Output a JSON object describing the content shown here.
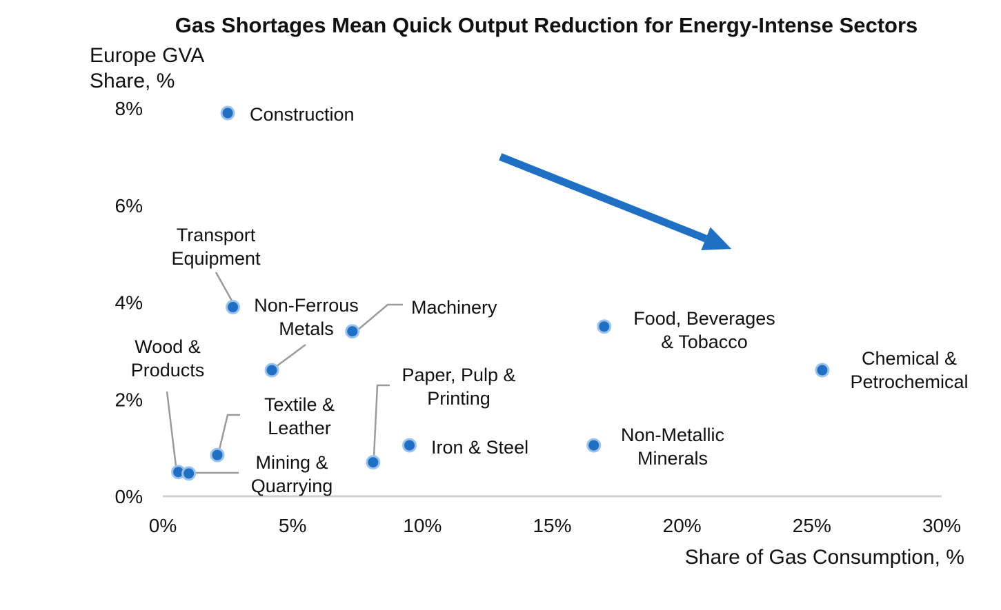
{
  "chart_data": {
    "type": "scatter",
    "title": "Gas Shortages Mean Quick Output Reduction for Energy-Intense Sectors",
    "xlabel": "Share of Gas Consumption, %",
    "ylabel_lines": [
      "Europe GVA",
      "Share, %"
    ],
    "xlim": [
      0,
      30
    ],
    "ylim": [
      0,
      8
    ],
    "xticks": [
      0,
      5,
      10,
      15,
      20,
      25,
      30
    ],
    "xtick_labels": [
      "0%",
      "5%",
      "10%",
      "15%",
      "20%",
      "25%",
      "30%"
    ],
    "yticks": [
      0,
      2,
      4,
      6,
      8
    ],
    "ytick_labels": [
      "0%",
      "2%",
      "4%",
      "6%",
      "8%"
    ],
    "grid": false,
    "marker_color": "#1f6fc5",
    "marker_edge_color": "#9cc3ea",
    "leader_color": "#9a9a9a",
    "arrow_color": "#1f6fc5",
    "trend_arrow": {
      "from": [
        13,
        7
      ],
      "to": [
        21.9,
        5.1
      ]
    },
    "points": [
      {
        "x": 2.5,
        "y": 7.9,
        "lines": [
          "Construction"
        ]
      },
      {
        "x": 2.7,
        "y": 3.9,
        "lines": [
          "Transport",
          "Equipment"
        ]
      },
      {
        "x": 4.2,
        "y": 2.6,
        "lines": [
          "Non-Ferrous",
          "Metals"
        ]
      },
      {
        "x": 7.3,
        "y": 3.4,
        "lines": [
          "Machinery"
        ]
      },
      {
        "x": 17.0,
        "y": 3.5,
        "lines": [
          "Food, Beverages",
          "& Tobacco"
        ]
      },
      {
        "x": 25.4,
        "y": 2.6,
        "lines": [
          "Chemical &",
          "Petrochemical"
        ]
      },
      {
        "x": 0.6,
        "y": 0.5,
        "lines": [
          "Wood &",
          "Products"
        ]
      },
      {
        "x": 2.1,
        "y": 0.85,
        "lines": [
          "Textile &",
          "Leather"
        ]
      },
      {
        "x": 1.0,
        "y": 0.47,
        "lines": [
          "Mining &",
          "Quarrying"
        ]
      },
      {
        "x": 8.1,
        "y": 0.7,
        "lines": [
          "Paper, Pulp &",
          "Printing"
        ]
      },
      {
        "x": 9.5,
        "y": 1.05,
        "lines": [
          "Iron & Steel"
        ]
      },
      {
        "x": 16.6,
        "y": 1.05,
        "lines": [
          "Non-Metallic",
          "Minerals"
        ]
      }
    ]
  }
}
